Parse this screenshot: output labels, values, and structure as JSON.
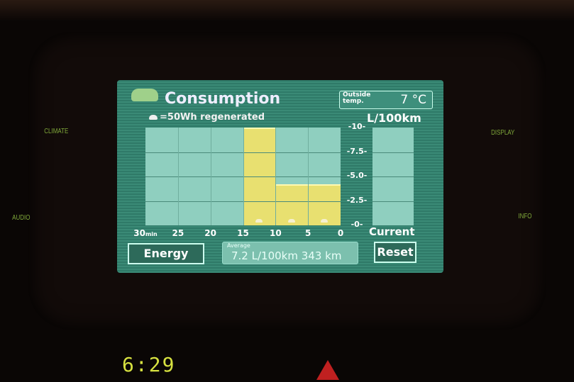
{
  "panel": {
    "side_labels": [
      "CLIMATE",
      "AUDIO",
      "DISPLAY",
      "INFO"
    ],
    "clock": "6:29"
  },
  "header": {
    "title": "Consumption",
    "regen_legend": "=50Wh regenerated",
    "outside_label": "Outside temp.",
    "outside_value": "7 °C"
  },
  "buttons": {
    "energy": "Energy",
    "reset": "Reset"
  },
  "average": {
    "label": "Average",
    "value": "7.2 L/100km  343 km"
  },
  "colors": {
    "bar": "#e8e070",
    "plot_bg": "#8fcfbf",
    "screen_bg": "#3a8a76"
  },
  "chart_data": {
    "type": "bar",
    "ylabel": "L/100km",
    "ylim": [
      0,
      10
    ],
    "yticks": [
      "0",
      "2.5",
      "5.0",
      "7.5",
      "10"
    ],
    "xticks": [
      "30min",
      "25",
      "20",
      "15",
      "10",
      "5",
      "0"
    ],
    "categories": [
      "30-25",
      "25-20",
      "20-15",
      "15-10",
      "10-5",
      "5-0"
    ],
    "values": [
      0,
      0,
      0,
      10,
      4.2,
      4.2
    ],
    "regen_icons": [
      0,
      0,
      0,
      1,
      1,
      1
    ],
    "current_label": "Current",
    "current_value": 0
  }
}
